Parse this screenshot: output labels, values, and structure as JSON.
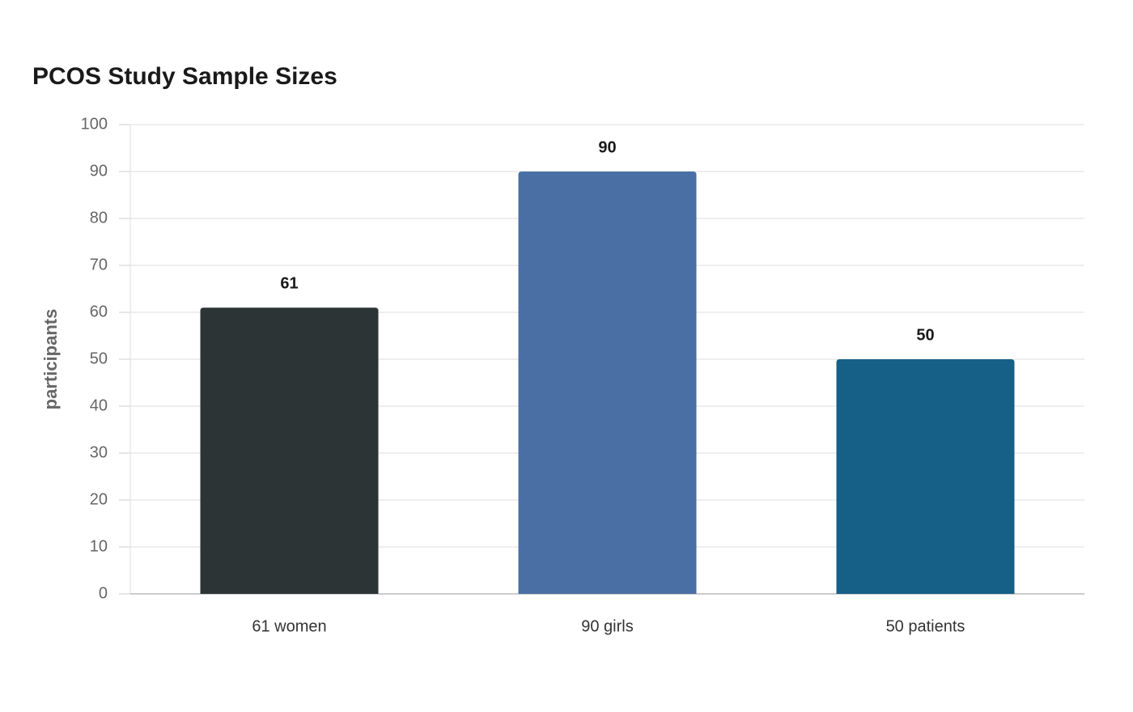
{
  "chart_data": {
    "type": "bar",
    "title": "PCOS Study Sample Sizes",
    "y_label": "participants",
    "categories": [
      "61 women",
      "90 girls",
      "50 patients"
    ],
    "values": [
      61,
      90,
      50
    ],
    "colors": [
      "#2d3436",
      "#4a6fa5",
      "#166088"
    ],
    "ylim": [
      0,
      100
    ],
    "yticks": [
      0,
      10,
      20,
      30,
      40,
      50,
      60,
      70,
      80,
      90,
      100
    ],
    "grid": true
  }
}
